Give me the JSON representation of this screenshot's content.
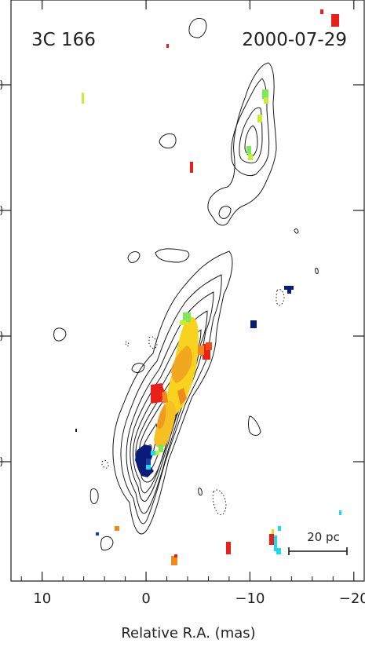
{
  "chart_data": {
    "type": "heatmap",
    "title_left": "3C 166",
    "title_right": "2000-07-29",
    "xlabel": "Relative R.A. (mas)",
    "ylabel": "",
    "xlim": [
      13,
      -21
    ],
    "x_ticks": [
      10,
      0,
      -10,
      -20
    ],
    "x_tick_labels": [
      "10",
      "0",
      "−10",
      "−20"
    ],
    "scale_bar": {
      "label": "20 pc"
    },
    "grid": false,
    "colors": {
      "contour": "#1a1a1a",
      "red": "#e8201a",
      "orange": "#f08a1c",
      "yellow": "#f7d21e",
      "green": "#7ee85a",
      "cyan": "#1fd7ee",
      "blue": "#1c3ea8",
      "navy": "#0b1b7a"
    }
  }
}
